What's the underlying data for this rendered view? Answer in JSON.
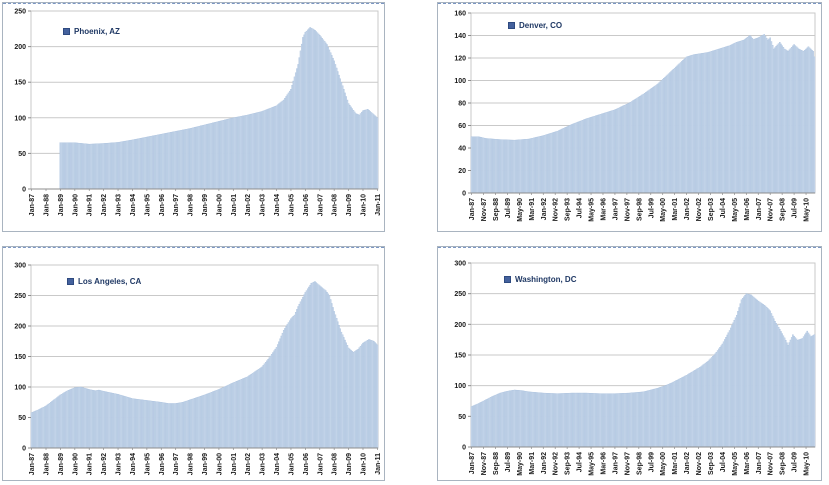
{
  "page": {
    "background": "#ffffff"
  },
  "colors": {
    "bar_fill": "#c7d7ea",
    "bar_stroke": "#a6bedc",
    "gridline": "#c9c9c9",
    "plot_border": "#c9c9c9",
    "axis_line": "#8c8c8c",
    "tick_text": "#1a1a1a",
    "legend_text": "#1f3864",
    "legend_marker": "#44619d",
    "chart_border": "#a9b4c0"
  },
  "chart_data": [
    {
      "type": "bar",
      "legend": "Phoenix, AZ",
      "ylabel": "",
      "xlabel": "",
      "ylim": [
        0,
        250
      ],
      "ytick_labels": [
        "0",
        "50",
        "100",
        "150",
        "200",
        "250"
      ],
      "yticks": [
        0,
        50,
        100,
        150,
        200,
        250
      ],
      "x_axis_start": "Jan-87",
      "x_axis_end": "Jan-11",
      "data_start": "Jan-89",
      "data_end": "Jan-11",
      "grid": "horizontal",
      "legend_position": "top-left-inside",
      "xtick_labels": [
        "Jan-87",
        "Jan-88",
        "Jan-89",
        "Jan-90",
        "Jan-91",
        "Jan-92",
        "Jan-93",
        "Jan-94",
        "Jan-95",
        "Jan-96",
        "Jan-97",
        "Jan-98",
        "Jan-99",
        "Jan-00",
        "Jan-01",
        "Jan-02",
        "Jan-03",
        "Jan-04",
        "Jan-05",
        "Jan-06",
        "Jan-07",
        "Jan-08",
        "Jan-09",
        "Jan-10",
        "Jan-11"
      ],
      "keypoints": [
        {
          "date": "Jan-89",
          "value": 65
        },
        {
          "date": "Jan-90",
          "value": 65
        },
        {
          "date": "Jul-90",
          "value": 64
        },
        {
          "date": "Jan-91",
          "value": 63
        },
        {
          "date": "Jan-92",
          "value": 64
        },
        {
          "date": "Jan-93",
          "value": 65.5
        },
        {
          "date": "Jan-94",
          "value": 69
        },
        {
          "date": "Jan-95",
          "value": 73
        },
        {
          "date": "Jan-96",
          "value": 77
        },
        {
          "date": "Jan-97",
          "value": 81
        },
        {
          "date": "Jan-98",
          "value": 85
        },
        {
          "date": "Jan-99",
          "value": 90
        },
        {
          "date": "Jan-00",
          "value": 95
        },
        {
          "date": "Jan-01",
          "value": 100
        },
        {
          "date": "Jan-02",
          "value": 104
        },
        {
          "date": "Jan-03",
          "value": 109
        },
        {
          "date": "Jan-04",
          "value": 117
        },
        {
          "date": "Jul-04",
          "value": 125
        },
        {
          "date": "Jan-05",
          "value": 140
        },
        {
          "date": "Jul-05",
          "value": 175
        },
        {
          "date": "Nov-05",
          "value": 213
        },
        {
          "date": "Jan-06",
          "value": 220
        },
        {
          "date": "May-06",
          "value": 227
        },
        {
          "date": "Sep-06",
          "value": 223
        },
        {
          "date": "Jan-07",
          "value": 216
        },
        {
          "date": "Jul-07",
          "value": 203
        },
        {
          "date": "Jan-08",
          "value": 180
        },
        {
          "date": "Jul-08",
          "value": 150
        },
        {
          "date": "Jan-09",
          "value": 120
        },
        {
          "date": "Jul-09",
          "value": 106
        },
        {
          "date": "Oct-09",
          "value": 104
        },
        {
          "date": "Jan-10",
          "value": 110
        },
        {
          "date": "May-10",
          "value": 112
        },
        {
          "date": "Sep-10",
          "value": 106
        },
        {
          "date": "Jan-11",
          "value": 100
        }
      ],
      "sampling_note": "monthly columns; values between keypoints are linear"
    },
    {
      "type": "bar",
      "legend": "Denver, CO",
      "ylabel": "",
      "xlabel": "",
      "ylim": [
        0,
        160
      ],
      "ytick_labels": [
        "0",
        "20",
        "40",
        "60",
        "80",
        "100",
        "120",
        "140",
        "160"
      ],
      "yticks": [
        0,
        20,
        40,
        60,
        80,
        100,
        120,
        140,
        160
      ],
      "x_axis_start": "Jan-87",
      "x_axis_end": "Dec-10",
      "data_start": "Jan-87",
      "data_end": "Dec-10",
      "grid": "horizontal",
      "legend_position": "top-left-inside",
      "xtick_labels": [
        "Jan-87",
        "Nov-87",
        "Sep-88",
        "Jul-89",
        "May-90",
        "Mar-91",
        "Jan-92",
        "Nov-92",
        "Sep-93",
        "Jul-94",
        "May-95",
        "Mar-96",
        "Jan-97",
        "Nov-97",
        "Sep-98",
        "Jul-99",
        "May-00",
        "Mar-01",
        "Jan-02",
        "Nov-02",
        "Sep-03",
        "Jul-04",
        "May-05",
        "Mar-06",
        "Jan-07",
        "Nov-07",
        "Sep-08",
        "Jul-09",
        "May-10"
      ],
      "keypoints": [
        {
          "date": "Jan-87",
          "value": 50
        },
        {
          "date": "Jul-87",
          "value": 50
        },
        {
          "date": "Jan-88",
          "value": 48.5
        },
        {
          "date": "Jan-89",
          "value": 47.5
        },
        {
          "date": "Jan-90",
          "value": 47
        },
        {
          "date": "Jan-91",
          "value": 48
        },
        {
          "date": "Jan-92",
          "value": 51
        },
        {
          "date": "Jan-93",
          "value": 55
        },
        {
          "date": "Jan-94",
          "value": 61
        },
        {
          "date": "Jan-95",
          "value": 66
        },
        {
          "date": "Jan-96",
          "value": 70
        },
        {
          "date": "Jan-97",
          "value": 74
        },
        {
          "date": "Jan-98",
          "value": 80
        },
        {
          "date": "Jan-99",
          "value": 88
        },
        {
          "date": "Jan-00",
          "value": 97
        },
        {
          "date": "Jul-00",
          "value": 103
        },
        {
          "date": "Jan-01",
          "value": 109
        },
        {
          "date": "Jul-01",
          "value": 115
        },
        {
          "date": "Jan-02",
          "value": 121
        },
        {
          "date": "Jul-02",
          "value": 123
        },
        {
          "date": "Jan-03",
          "value": 124
        },
        {
          "date": "Jul-03",
          "value": 125
        },
        {
          "date": "Jan-04",
          "value": 127
        },
        {
          "date": "Jul-04",
          "value": 129
        },
        {
          "date": "Jan-05",
          "value": 131
        },
        {
          "date": "Jul-05",
          "value": 134
        },
        {
          "date": "Jan-06",
          "value": 136
        },
        {
          "date": "Jun-06",
          "value": 140
        },
        {
          "date": "Sep-06",
          "value": 136.5
        },
        {
          "date": "Jan-07",
          "value": 138
        },
        {
          "date": "Jun-07",
          "value": 141
        },
        {
          "date": "Sep-07",
          "value": 136
        },
        {
          "date": "Nov-07",
          "value": 138
        },
        {
          "date": "Feb-08",
          "value": 128
        },
        {
          "date": "Jul-08",
          "value": 134
        },
        {
          "date": "Nov-08",
          "value": 128
        },
        {
          "date": "Feb-09",
          "value": 126
        },
        {
          "date": "Jul-09",
          "value": 132
        },
        {
          "date": "Nov-09",
          "value": 128
        },
        {
          "date": "Mar-10",
          "value": 126
        },
        {
          "date": "Jul-10",
          "value": 130
        },
        {
          "date": "Nov-10",
          "value": 126
        },
        {
          "date": "Dec-10",
          "value": 121
        }
      ],
      "sampling_note": "monthly columns; values between keypoints are linear"
    },
    {
      "type": "bar",
      "legend": "Los Angeles, CA",
      "ylabel": "",
      "xlabel": "",
      "ylim": [
        0,
        300
      ],
      "ytick_labels": [
        "0",
        "50",
        "100",
        "150",
        "200",
        "250",
        "300"
      ],
      "yticks": [
        0,
        50,
        100,
        150,
        200,
        250,
        300
      ],
      "x_axis_start": "Jan-87",
      "x_axis_end": "Jan-11",
      "data_start": "Jan-87",
      "data_end": "Jan-11",
      "grid": "horizontal",
      "legend_position": "top-left-inside",
      "xtick_labels": [
        "Jan-87",
        "Jan-88",
        "Jan-89",
        "Jan-90",
        "Jan-91",
        "Jan-92",
        "Jan-93",
        "Jan-94",
        "Jan-95",
        "Jan-96",
        "Jan-97",
        "Jan-98",
        "Jan-99",
        "Jan-00",
        "Jan-01",
        "Jan-02",
        "Jan-03",
        "Jan-04",
        "Jan-05",
        "Jan-06",
        "Jan-07",
        "Jan-08",
        "Jan-09",
        "Jan-10",
        "Jan-11"
      ],
      "keypoints": [
        {
          "date": "Jan-87",
          "value": 58
        },
        {
          "date": "Jul-87",
          "value": 63
        },
        {
          "date": "Jan-88",
          "value": 69
        },
        {
          "date": "Jul-88",
          "value": 78
        },
        {
          "date": "Jan-89",
          "value": 87
        },
        {
          "date": "Jul-89",
          "value": 94
        },
        {
          "date": "Jan-90",
          "value": 99
        },
        {
          "date": "Jun-90",
          "value": 100
        },
        {
          "date": "Jan-91",
          "value": 96
        },
        {
          "date": "Jun-91",
          "value": 94
        },
        {
          "date": "Sep-91",
          "value": 95
        },
        {
          "date": "Jan-92",
          "value": 93
        },
        {
          "date": "Jan-93",
          "value": 88
        },
        {
          "date": "Jan-94",
          "value": 81
        },
        {
          "date": "Jan-95",
          "value": 78
        },
        {
          "date": "Jan-96",
          "value": 75
        },
        {
          "date": "Jul-96",
          "value": 73
        },
        {
          "date": "Jan-97",
          "value": 73
        },
        {
          "date": "Jul-97",
          "value": 75
        },
        {
          "date": "Jan-98",
          "value": 79
        },
        {
          "date": "Jan-99",
          "value": 87
        },
        {
          "date": "Jan-00",
          "value": 96
        },
        {
          "date": "Jan-01",
          "value": 107
        },
        {
          "date": "Jan-02",
          "value": 117
        },
        {
          "date": "Jan-03",
          "value": 133
        },
        {
          "date": "Jul-03",
          "value": 148
        },
        {
          "date": "Jan-04",
          "value": 165
        },
        {
          "date": "Jul-04",
          "value": 193
        },
        {
          "date": "Jan-05",
          "value": 212
        },
        {
          "date": "Apr-05",
          "value": 218
        },
        {
          "date": "Jul-05",
          "value": 232
        },
        {
          "date": "Jan-06",
          "value": 255
        },
        {
          "date": "Jun-06",
          "value": 270
        },
        {
          "date": "Sep-06",
          "value": 273
        },
        {
          "date": "Jan-07",
          "value": 266
        },
        {
          "date": "Jun-07",
          "value": 258
        },
        {
          "date": "Sep-07",
          "value": 250
        },
        {
          "date": "Jan-08",
          "value": 224
        },
        {
          "date": "Jul-08",
          "value": 190
        },
        {
          "date": "Jan-09",
          "value": 164
        },
        {
          "date": "May-09",
          "value": 157
        },
        {
          "date": "Sep-09",
          "value": 162
        },
        {
          "date": "Jan-10",
          "value": 172
        },
        {
          "date": "Jun-10",
          "value": 178
        },
        {
          "date": "Oct-10",
          "value": 175
        },
        {
          "date": "Jan-11",
          "value": 169
        }
      ],
      "sampling_note": "monthly columns; values between keypoints are linear"
    },
    {
      "type": "bar",
      "legend": "Washington, DC",
      "ylabel": "",
      "xlabel": "",
      "ylim": [
        0,
        300
      ],
      "ytick_labels": [
        "0",
        "50",
        "100",
        "150",
        "200",
        "250",
        "300"
      ],
      "yticks": [
        0,
        50,
        100,
        150,
        200,
        250,
        300
      ],
      "x_axis_start": "Jan-87",
      "x_axis_end": "Dec-10",
      "data_start": "Jan-87",
      "data_end": "Dec-10",
      "grid": "horizontal",
      "legend_position": "top-left-inside",
      "xtick_labels": [
        "Jan-87",
        "Nov-87",
        "Sep-88",
        "Jul-89",
        "May-90",
        "Mar-91",
        "Jan-92",
        "Nov-92",
        "Sep-93",
        "Jul-94",
        "May-95",
        "Mar-96",
        "Jan-97",
        "Nov-97",
        "Sep-98",
        "Jul-99",
        "May-00",
        "Mar-01",
        "Jan-02",
        "Nov-02",
        "Sep-03",
        "Jul-04",
        "May-05",
        "Mar-06",
        "Jan-07",
        "Nov-07",
        "Sep-08",
        "Jul-09",
        "May-10"
      ],
      "keypoints": [
        {
          "date": "Jan-87",
          "value": 66
        },
        {
          "date": "Jul-87",
          "value": 71
        },
        {
          "date": "Jan-88",
          "value": 77
        },
        {
          "date": "Jul-88",
          "value": 83
        },
        {
          "date": "Jan-89",
          "value": 88
        },
        {
          "date": "Jul-89",
          "value": 91
        },
        {
          "date": "Jan-90",
          "value": 93
        },
        {
          "date": "Jul-90",
          "value": 92
        },
        {
          "date": "Jan-91",
          "value": 90
        },
        {
          "date": "Jan-92",
          "value": 88
        },
        {
          "date": "Jan-93",
          "value": 87
        },
        {
          "date": "Jan-94",
          "value": 88
        },
        {
          "date": "Jan-95",
          "value": 88
        },
        {
          "date": "Jan-96",
          "value": 87
        },
        {
          "date": "Jan-97",
          "value": 87
        },
        {
          "date": "Jan-98",
          "value": 88
        },
        {
          "date": "Jan-99",
          "value": 90
        },
        {
          "date": "Jan-00",
          "value": 96
        },
        {
          "date": "Jul-00",
          "value": 100
        },
        {
          "date": "Jan-01",
          "value": 105
        },
        {
          "date": "Jul-01",
          "value": 111
        },
        {
          "date": "Jan-02",
          "value": 117
        },
        {
          "date": "Jul-02",
          "value": 124
        },
        {
          "date": "Jan-03",
          "value": 131
        },
        {
          "date": "Jul-03",
          "value": 140
        },
        {
          "date": "Jan-04",
          "value": 152
        },
        {
          "date": "Jul-04",
          "value": 168
        },
        {
          "date": "Jan-05",
          "value": 190
        },
        {
          "date": "Jul-05",
          "value": 215
        },
        {
          "date": "Nov-05",
          "value": 240
        },
        {
          "date": "Mar-06",
          "value": 250
        },
        {
          "date": "Jul-06",
          "value": 248
        },
        {
          "date": "Jan-07",
          "value": 238
        },
        {
          "date": "Jul-07",
          "value": 230
        },
        {
          "date": "Nov-07",
          "value": 222
        },
        {
          "date": "Mar-08",
          "value": 205
        },
        {
          "date": "Jul-08",
          "value": 192
        },
        {
          "date": "Nov-08",
          "value": 178
        },
        {
          "date": "Feb-09",
          "value": 166
        },
        {
          "date": "Jun-09",
          "value": 183
        },
        {
          "date": "Oct-09",
          "value": 174
        },
        {
          "date": "Feb-10",
          "value": 177
        },
        {
          "date": "Jun-10",
          "value": 189
        },
        {
          "date": "Sep-10",
          "value": 180
        },
        {
          "date": "Dec-10",
          "value": 183
        }
      ],
      "sampling_note": "monthly columns; values between keypoints are linear"
    }
  ]
}
